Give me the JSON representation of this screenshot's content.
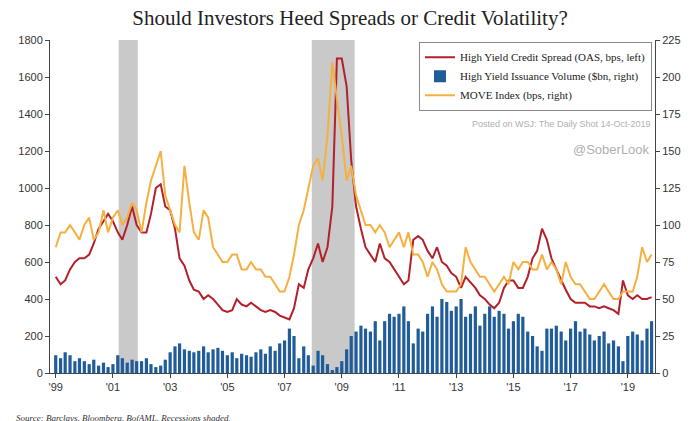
{
  "chart_data": {
    "type": "combo",
    "title": "Should Investors Heed Spreads or Credit Volatility?",
    "source": "Source: Barclays, Bloomberg, BofAML. Recessions shaded.",
    "annotations": [
      "Posted on WSJ: The Daily Shot 14-Oct-2019",
      "@SoberLook"
    ],
    "grid": false,
    "legend": "upper right",
    "recessions": [
      {
        "start": 2001.2,
        "end": 2001.87
      },
      {
        "start": 2007.95,
        "end": 2009.45
      }
    ],
    "xlim": [
      1998.8,
      2019.95
    ],
    "xticks": [
      {
        "value": 1999,
        "label": "'99"
      },
      {
        "value": 2001,
        "label": "'01"
      },
      {
        "value": 2003,
        "label": "'03"
      },
      {
        "value": 2005,
        "label": "'05"
      },
      {
        "value": 2007,
        "label": "'07"
      },
      {
        "value": 2009,
        "label": "'09"
      },
      {
        "value": 2011,
        "label": "'11"
      },
      {
        "value": 2013,
        "label": "'13"
      },
      {
        "value": 2015,
        "label": "'15"
      },
      {
        "value": 2017,
        "label": "'17"
      },
      {
        "value": 2019,
        "label": "'19"
      }
    ],
    "ylim": [
      0,
      1800
    ],
    "yticks": [
      0,
      200,
      400,
      600,
      800,
      1000,
      1200,
      1400,
      1600,
      1800
    ],
    "y2lim": [
      0,
      225
    ],
    "y2ticks": [
      0,
      25,
      50,
      75,
      100,
      125,
      150,
      175,
      200,
      225
    ],
    "x": [
      1999.0,
      1999.17,
      1999.33,
      1999.5,
      1999.67,
      1999.83,
      2000.0,
      2000.17,
      2000.33,
      2000.5,
      2000.67,
      2000.83,
      2001.0,
      2001.17,
      2001.33,
      2001.5,
      2001.67,
      2001.83,
      2002.0,
      2002.17,
      2002.33,
      2002.5,
      2002.67,
      2002.83,
      2003.0,
      2003.17,
      2003.33,
      2003.5,
      2003.67,
      2003.83,
      2004.0,
      2004.17,
      2004.33,
      2004.5,
      2004.67,
      2004.83,
      2005.0,
      2005.17,
      2005.33,
      2005.5,
      2005.67,
      2005.83,
      2006.0,
      2006.17,
      2006.33,
      2006.5,
      2006.67,
      2006.83,
      2007.0,
      2007.17,
      2007.33,
      2007.5,
      2007.67,
      2007.83,
      2008.0,
      2008.17,
      2008.33,
      2008.5,
      2008.67,
      2008.83,
      2009.0,
      2009.17,
      2009.33,
      2009.5,
      2009.67,
      2009.83,
      2010.0,
      2010.17,
      2010.33,
      2010.5,
      2010.67,
      2010.83,
      2011.0,
      2011.17,
      2011.33,
      2011.5,
      2011.67,
      2011.83,
      2012.0,
      2012.17,
      2012.33,
      2012.5,
      2012.67,
      2012.83,
      2013.0,
      2013.17,
      2013.33,
      2013.5,
      2013.67,
      2013.83,
      2014.0,
      2014.17,
      2014.33,
      2014.5,
      2014.67,
      2014.83,
      2015.0,
      2015.17,
      2015.33,
      2015.5,
      2015.67,
      2015.83,
      2016.0,
      2016.17,
      2016.33,
      2016.5,
      2016.67,
      2016.83,
      2017.0,
      2017.17,
      2017.33,
      2017.5,
      2017.67,
      2017.83,
      2018.0,
      2018.17,
      2018.33,
      2018.5,
      2018.67,
      2018.83,
      2019.0,
      2019.17,
      2019.33,
      2019.5,
      2019.67,
      2019.83
    ],
    "series": [
      {
        "name": "High Yield Credit Spread (OAS, bps, left)",
        "type": "line",
        "color": "#b3202a",
        "values": [
          520,
          480,
          500,
          560,
          600,
          620,
          620,
          640,
          700,
          780,
          820,
          860,
          820,
          760,
          720,
          800,
          900,
          800,
          760,
          760,
          860,
          1000,
          1020,
          900,
          880,
          780,
          620,
          580,
          500,
          450,
          440,
          400,
          420,
          400,
          370,
          340,
          330,
          340,
          400,
          370,
          360,
          380,
          360,
          340,
          330,
          340,
          330,
          310,
          300,
          290,
          350,
          480,
          460,
          560,
          620,
          700,
          600,
          680,
          900,
          1700,
          1700,
          1550,
          1150,
          900,
          780,
          680,
          640,
          600,
          700,
          620,
          600,
          560,
          520,
          480,
          500,
          720,
          740,
          720,
          660,
          620,
          680,
          600,
          580,
          540,
          520,
          460,
          520,
          490,
          460,
          420,
          400,
          370,
          350,
          380,
          460,
          500,
          500,
          460,
          460,
          520,
          620,
          660,
          780,
          720,
          620,
          560,
          500,
          450,
          400,
          380,
          380,
          380,
          360,
          360,
          350,
          360,
          350,
          340,
          320,
          500,
          420,
          400,
          420,
          400,
          400,
          410
        ]
      },
      {
        "name": "High Yield Issuance Volume ($bn, right)",
        "type": "bar",
        "axis": "y2",
        "color": "#1f5c99",
        "values": [
          12,
          10,
          14,
          12,
          8,
          10,
          8,
          6,
          9,
          5,
          7,
          4,
          6,
          12,
          10,
          7,
          9,
          8,
          8,
          10,
          6,
          4,
          5,
          9,
          14,
          18,
          20,
          16,
          15,
          14,
          15,
          18,
          14,
          16,
          17,
          15,
          12,
          14,
          10,
          13,
          12,
          11,
          14,
          16,
          13,
          18,
          15,
          20,
          22,
          30,
          25,
          10,
          18,
          12,
          5,
          15,
          12,
          6,
          2,
          4,
          8,
          16,
          25,
          28,
          32,
          30,
          28,
          35,
          22,
          35,
          40,
          38,
          40,
          45,
          35,
          20,
          30,
          28,
          40,
          45,
          38,
          50,
          48,
          42,
          45,
          50,
          38,
          40,
          45,
          32,
          40,
          45,
          38,
          42,
          40,
          30,
          35,
          40,
          38,
          28,
          25,
          18,
          15,
          30,
          30,
          32,
          28,
          22,
          30,
          35,
          28,
          30,
          26,
          22,
          25,
          28,
          20,
          22,
          18,
          8,
          25,
          28,
          26,
          22,
          30,
          35
        ]
      },
      {
        "name": "MOVE Index (bps, right)",
        "type": "line",
        "axis": "y2",
        "color": "#f5b041",
        "values": [
          85,
          95,
          95,
          100,
          95,
          90,
          100,
          105,
          90,
          95,
          110,
          95,
          105,
          110,
          100,
          105,
          115,
          110,
          95,
          115,
          130,
          140,
          150,
          120,
          110,
          100,
          95,
          140,
          115,
          95,
          90,
          110,
          105,
          85,
          80,
          75,
          75,
          80,
          80,
          70,
          70,
          75,
          70,
          70,
          65,
          65,
          60,
          55,
          55,
          65,
          80,
          100,
          110,
          125,
          140,
          145,
          130,
          160,
          210,
          185,
          160,
          130,
          140,
          120,
          110,
          100,
          100,
          95,
          100,
          95,
          85,
          90,
          95,
          85,
          95,
          80,
          80,
          75,
          65,
          75,
          70,
          60,
          55,
          55,
          55,
          60,
          85,
          75,
          70,
          65,
          65,
          60,
          55,
          60,
          65,
          60,
          75,
          70,
          75,
          75,
          70,
          70,
          80,
          70,
          75,
          70,
          60,
          75,
          65,
          60,
          60,
          55,
          50,
          50,
          55,
          60,
          55,
          50,
          50,
          55,
          55,
          55,
          65,
          85,
          75,
          80
        ]
      }
    ]
  }
}
